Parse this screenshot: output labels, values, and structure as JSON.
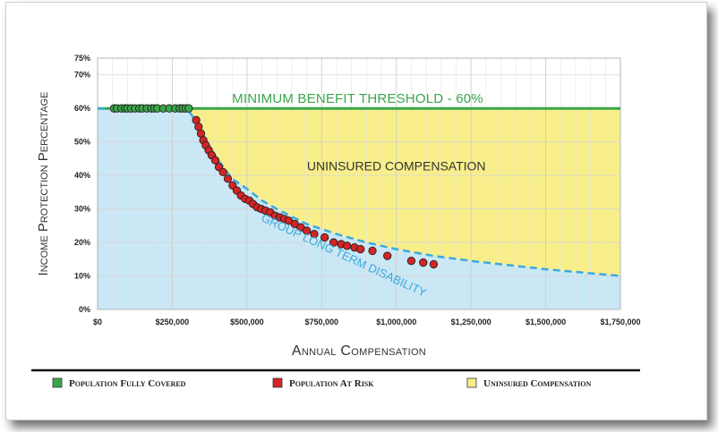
{
  "chart_data": {
    "type": "scatter",
    "xlabel": "Annual Compensation",
    "ylabel": "Income Protection Percentage",
    "xlim": [
      0,
      1750000
    ],
    "ylim": [
      0,
      75
    ],
    "x_ticks": [
      "$0",
      "$250,000",
      "$500,000",
      "$750,000",
      "$1,000,000",
      "$1,250,000",
      "$1,500,000",
      "$1,750,000"
    ],
    "x_tick_values": [
      0,
      250000,
      500000,
      750000,
      1000000,
      1250000,
      1500000,
      1750000
    ],
    "y_ticks": [
      "0%",
      "10%",
      "20%",
      "30%",
      "40%",
      "50%",
      "60%",
      "70%",
      "75%"
    ],
    "y_tick_values": [
      0,
      10,
      20,
      30,
      40,
      50,
      60,
      70,
      75
    ],
    "grid": true,
    "threshold": {
      "value": 60,
      "label": "Minimum Benefit Threshold - 60%",
      "color": "#3aa64a"
    },
    "region_labels": {
      "uninsured": "Uninsured Compensation",
      "ltd": "Group Long Term Disability"
    },
    "ltd_curve": {
      "cap_start_x": 300000,
      "x": [
        0,
        300000,
        330000,
        360000,
        400000,
        450000,
        500000,
        550000,
        600000,
        700000,
        800000,
        900000,
        1000000,
        1125000,
        1250000,
        1500000,
        1750000
      ],
      "y": [
        60,
        60,
        56,
        51,
        45,
        39,
        36,
        32.5,
        30,
        25.5,
        22.5,
        20,
        18,
        16,
        14.5,
        12,
        10
      ]
    },
    "series": [
      {
        "name": "Population Fully Covered",
        "color": "#3aa64a",
        "x": [
          55000,
          65000,
          80000,
          92000,
          100000,
          112000,
          125000,
          140000,
          150000,
          165000,
          180000,
          190000,
          200000,
          220000,
          240000,
          260000,
          275000,
          285000,
          295000,
          305000
        ],
        "y": [
          60,
          60,
          60,
          60,
          60,
          60,
          60,
          60,
          60,
          60,
          60,
          60,
          60,
          60,
          60,
          60,
          60,
          60,
          60,
          60
        ]
      },
      {
        "name": "Population At Risk",
        "color": "#d42424",
        "x": [
          330000,
          338000,
          346000,
          354000,
          362000,
          372000,
          382000,
          394000,
          406000,
          420000,
          436000,
          452000,
          466000,
          480000,
          494000,
          508000,
          520000,
          534000,
          548000,
          562000,
          578000,
          594000,
          610000,
          625000,
          640000,
          660000,
          680000,
          700000,
          725000,
          760000,
          790000,
          815000,
          835000,
          860000,
          880000,
          920000,
          970000,
          1050000,
          1090000,
          1125000
        ],
        "y": [
          56.5,
          54.5,
          52.5,
          50.5,
          49,
          47.5,
          46,
          44.5,
          42.5,
          41,
          39,
          37,
          35.5,
          34,
          33,
          32.5,
          31.5,
          30.5,
          30,
          29.5,
          29,
          28,
          27.5,
          27,
          26.5,
          25.5,
          24.5,
          23.5,
          22.5,
          21.5,
          20,
          19.5,
          19,
          18.5,
          18,
          17.5,
          16,
          14.5,
          14,
          13.5
        ]
      },
      {
        "name": "Uninsured Compensation",
        "color": "#f8ee8a"
      }
    ]
  }
}
